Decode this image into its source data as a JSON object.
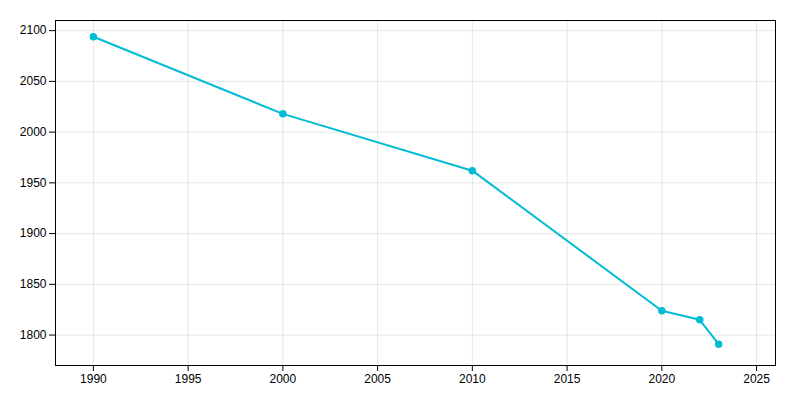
{
  "chart_data": {
    "type": "line",
    "x": [
      1990,
      2000,
      2010,
      2020,
      2022,
      2023
    ],
    "values": [
      2094,
      2018,
      1962,
      1824,
      1815,
      1791
    ],
    "color": "#00BCD4",
    "marker": "circle",
    "xlim": [
      1988,
      2026
    ],
    "ylim": [
      1770,
      2110
    ],
    "xticks": [
      1990,
      1995,
      2000,
      2005,
      2010,
      2015,
      2020,
      2025
    ],
    "yticks": [
      1800,
      1850,
      1900,
      1950,
      2000,
      2050,
      2100
    ],
    "grid": true
  }
}
